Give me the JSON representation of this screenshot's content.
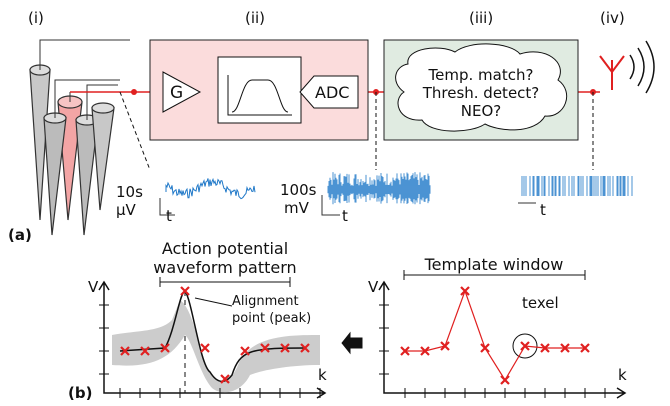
{
  "panel_a": {
    "label": "(a)",
    "stages": [
      "(i)",
      "(ii)",
      "(iii)",
      "(iv)"
    ],
    "amplifier": "G",
    "adc": "ADC",
    "detection": [
      "Temp. match?",
      "Thresh. detect?",
      "NEO?"
    ],
    "signals": [
      {
        "scale": "10s",
        "unit": "μV",
        "axis": "t"
      },
      {
        "scale": "100s",
        "unit": "mV",
        "axis": "t"
      },
      {
        "axis": "t"
      }
    ]
  },
  "panel_b": {
    "label": "(b)",
    "left": {
      "title": [
        "Action potential",
        "waveform pattern"
      ],
      "annotation": [
        "Alignment",
        "point (peak)"
      ],
      "y_axis": "V",
      "x_axis": "k"
    },
    "right": {
      "title": "Template window",
      "annotation": "texel",
      "y_axis": "V",
      "x_axis": "k"
    }
  }
}
